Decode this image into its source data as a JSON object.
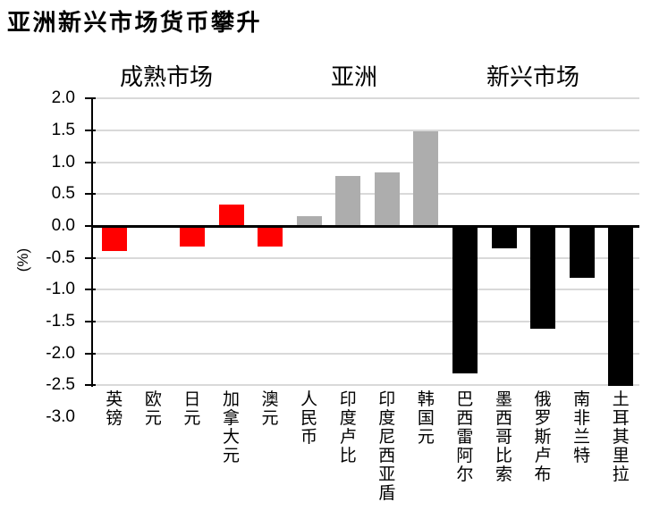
{
  "title": "亚洲新兴市场货币攀升",
  "chart_data": {
    "type": "bar",
    "title": "亚洲新兴市场货币攀升",
    "ylabel": "(%)",
    "ylim": [
      -3.0,
      2.0
    ],
    "ytick_step": 0.5,
    "yticks": [
      "2.0",
      "1.5",
      "1.0",
      "0.5",
      "0.0",
      "-0.5",
      "-1.0",
      "-1.5",
      "-2.0",
      "-2.5",
      "-3.0"
    ],
    "grid": true,
    "legend": "none",
    "categories": [
      "英镑",
      "欧元",
      "日元",
      "加拿大元",
      "澳元",
      "人民币",
      "印度卢比",
      "印度尼西亚盾",
      "韩国元",
      "巴西雷阿尔",
      "墨西哥比索",
      "俄罗斯卢布",
      "南非兰特",
      "土耳其里拉"
    ],
    "values": [
      -0.39,
      0.0,
      -0.32,
      0.34,
      -0.32,
      0.15,
      0.78,
      0.84,
      1.48,
      -2.32,
      -0.35,
      -1.61,
      -0.81,
      -2.51
    ],
    "groups": [
      {
        "label": "成熟市场",
        "start": 0,
        "end": 4,
        "color": "#FF0000"
      },
      {
        "label": "亚洲",
        "start": 5,
        "end": 8,
        "color": "#ADADAD"
      },
      {
        "label": "新兴市场",
        "start": 9,
        "end": 13,
        "color": "#000000"
      }
    ],
    "colors": {
      "grid": "#D9D9D9",
      "axis": "#000000",
      "zero_line": "#000000",
      "background": "#FFFFFF"
    }
  }
}
